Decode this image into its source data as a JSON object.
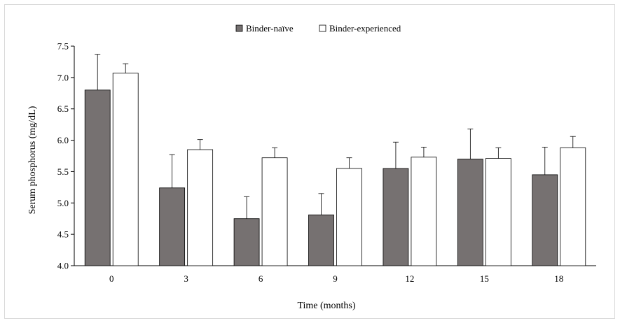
{
  "chart_data": {
    "type": "bar",
    "title": "",
    "xlabel": "Time (months)",
    "ylabel": "Serum phosphorus (mg/dL)",
    "ylim": [
      4.0,
      7.5
    ],
    "yticks": [
      "4.0",
      "4.5",
      "5.0",
      "5.5",
      "6.0",
      "6.5",
      "7.0",
      "7.5"
    ],
    "grid": false,
    "legend_position": "top-center",
    "categories": [
      "0",
      "3",
      "6",
      "9",
      "12",
      "15",
      "18"
    ],
    "series": [
      {
        "name": "Binder-naïve",
        "color": "#767171",
        "values": [
          6.8,
          5.24,
          4.75,
          4.81,
          5.55,
          5.7,
          5.45
        ],
        "error": [
          0.57,
          0.53,
          0.35,
          0.34,
          0.42,
          0.48,
          0.44
        ]
      },
      {
        "name": "Binder-experienced",
        "color": "#ffffff",
        "values": [
          7.07,
          5.85,
          5.72,
          5.55,
          5.73,
          5.71,
          5.88
        ],
        "error": [
          0.15,
          0.16,
          0.16,
          0.17,
          0.16,
          0.17,
          0.18
        ]
      }
    ]
  }
}
